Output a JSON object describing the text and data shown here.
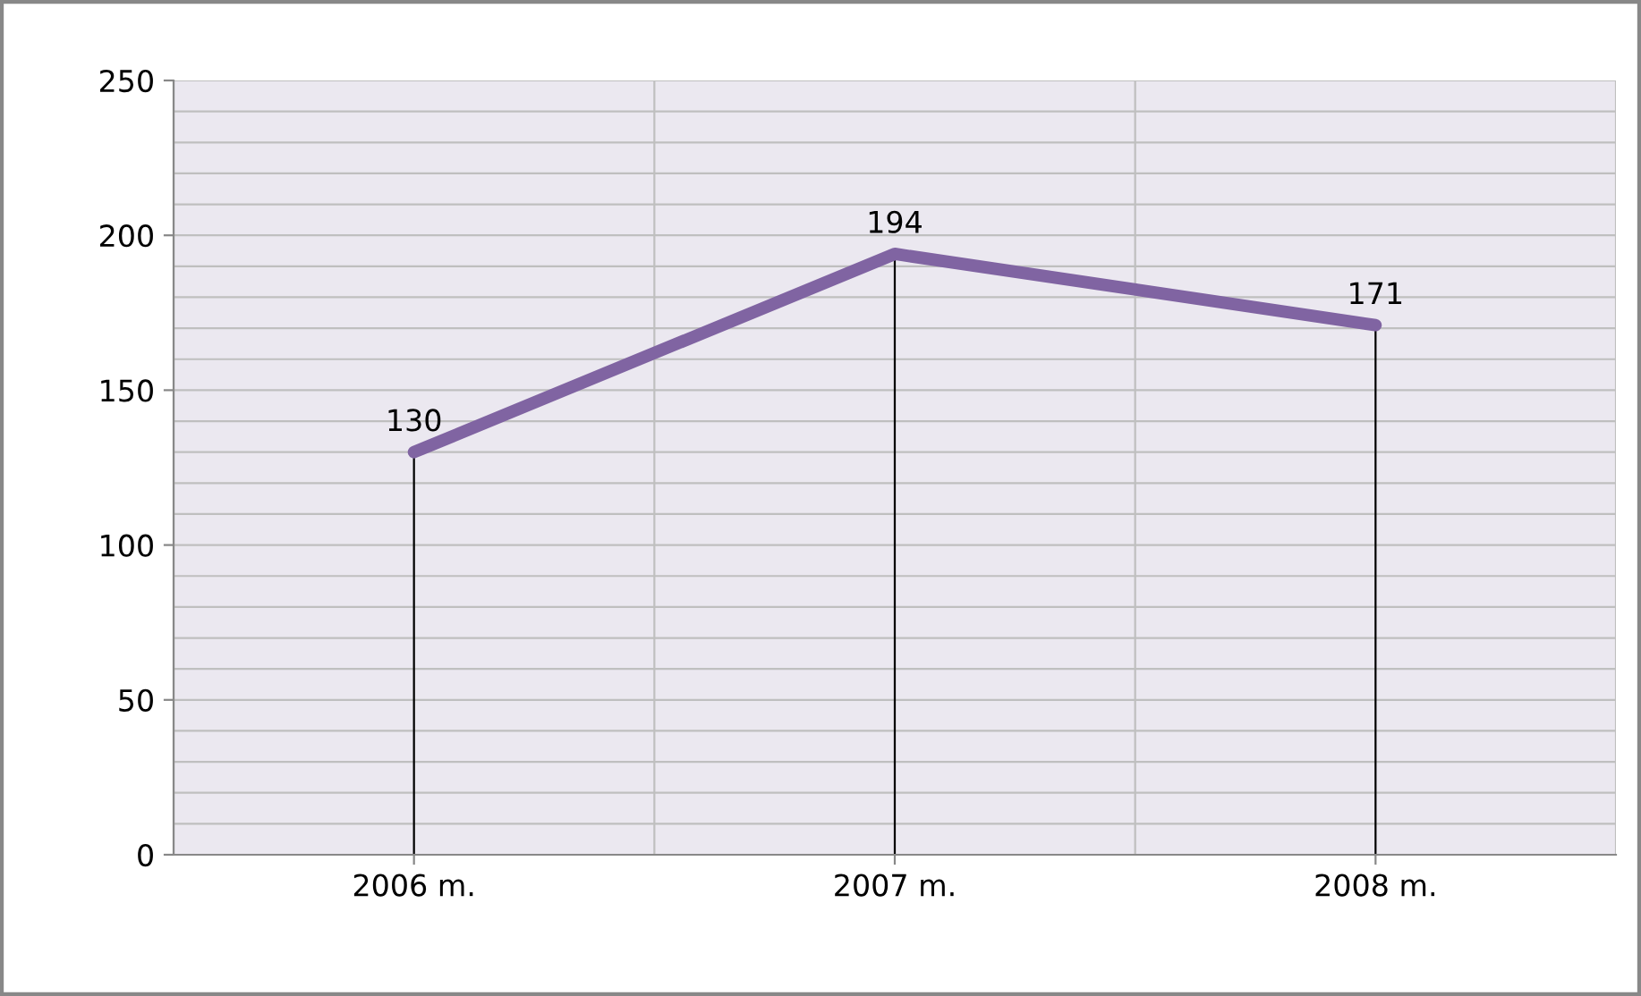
{
  "chart_data": {
    "type": "line",
    "categories": [
      "2006 m.",
      "2007 m.",
      "2008 m."
    ],
    "series": [
      {
        "color": "#8064a2",
        "values": [
          130,
          194,
          171
        ]
      }
    ],
    "ylim": [
      0,
      250
    ],
    "yticks": [
      0,
      50,
      100,
      150,
      200,
      250
    ],
    "grid": true,
    "data_labels": true,
    "marker": "none",
    "line_style": "solid"
  }
}
